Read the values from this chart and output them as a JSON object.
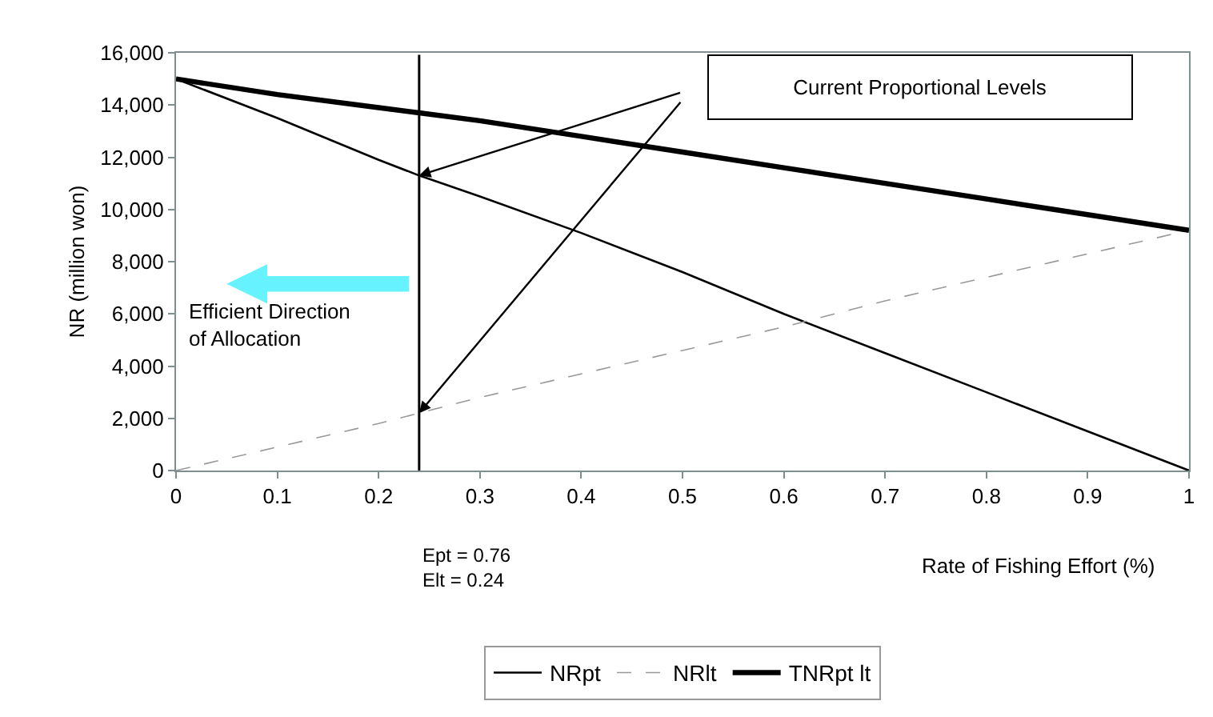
{
  "chart_data": {
    "type": "line",
    "xlabel": "Rate of Fishing Effort (%)",
    "ylabel": "NR (million won)",
    "x": [
      0,
      0.1,
      0.2,
      0.24,
      0.3,
      0.4,
      0.5,
      0.6,
      0.7,
      0.8,
      0.9,
      1
    ],
    "series": [
      {
        "name": "NRpt",
        "color": "#000000",
        "line_style": "solid",
        "values": [
          15000,
          13500,
          11900,
          11300,
          10500,
          9100,
          7600,
          6000,
          4500,
          3000,
          1500,
          0
        ]
      },
      {
        "name": "NRlt",
        "color": "#999999",
        "line_style": "dashed",
        "values": [
          0,
          900,
          1800,
          2200,
          2800,
          3700,
          4600,
          5500,
          6500,
          7400,
          8300,
          9200
        ]
      },
      {
        "name": "TNRpt lt",
        "color": "#000000",
        "line_style": "solid",
        "values": [
          15000,
          14400,
          13900,
          13700,
          13400,
          12800,
          12200,
          11600,
          11000,
          10400,
          9800,
          9200
        ]
      }
    ],
    "xlim": [
      0,
      1
    ],
    "ylim": [
      0,
      16000
    ],
    "xticks": [
      0,
      0.1,
      0.2,
      0.3,
      0.4,
      0.5,
      0.6,
      0.7,
      0.8,
      0.9,
      1
    ],
    "yticks": [
      0,
      {
        "value": 2000,
        "label": "2,000"
      },
      {
        "value": 4000,
        "label": "4,000"
      },
      {
        "value": 6000,
        "label": "6,000"
      },
      {
        "value": 8000,
        "label": "8,000"
      },
      {
        "value": 10000,
        "label": "10,000"
      },
      {
        "value": 12000,
        "label": "12,000"
      },
      {
        "value": 14000,
        "label": "14,000"
      },
      {
        "value": 16000,
        "label": "16,000"
      }
    ],
    "ref_lines": [
      {
        "axis": "x",
        "value": 0.24,
        "color": "#000000"
      }
    ],
    "annotations": [
      "Current Proportional Levels",
      "Efficient Direction of Allocation",
      "Ept = 0.76\nElt = 0.24"
    ],
    "grid": false,
    "legend": "bottom",
    "marker": "none"
  }
}
